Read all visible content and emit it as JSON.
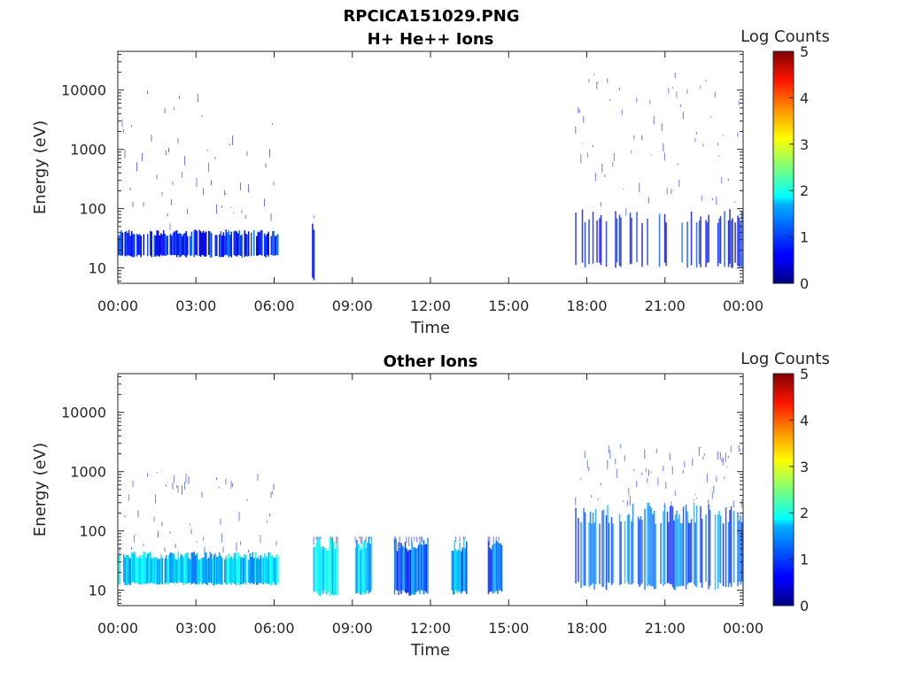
{
  "figure_title": "RPCICA151029.PNG",
  "chart_data": [
    {
      "type": "heatmap",
      "title": "H+ He++ Ions",
      "xlabel": "Time",
      "ylabel": "Energy (eV)",
      "x_tick_labels": [
        "00:00",
        "03:00",
        "06:00",
        "09:00",
        "12:00",
        "15:00",
        "18:00",
        "21:00",
        "00:00"
      ],
      "x_range_hours": [
        0,
        24
      ],
      "y_scale": "log",
      "y_range": [
        5.5,
        45000
      ],
      "y_tick_labels": [
        "10",
        "100",
        "1000",
        "10000"
      ],
      "y_tick_values": [
        10,
        100,
        1000,
        10000
      ],
      "colorbar": {
        "label": "Log Counts",
        "range": [
          0,
          5
        ],
        "tick_labels": [
          "0",
          "1",
          "2",
          "3",
          "4",
          "5"
        ],
        "colormap": "jet"
      },
      "grid": false,
      "regions": [
        {
          "t_start": 0.0,
          "t_end": 6.15,
          "e_min": 15,
          "e_max": 45,
          "log_counts": 0.8,
          "density": 0.85,
          "sparse_top": 10000
        },
        {
          "t_start": 7.45,
          "t_end": 7.55,
          "e_min": 6,
          "e_max": 75,
          "log_counts": 1.0,
          "density": 1.0,
          "sparse_top": 80
        },
        {
          "t_start": 17.5,
          "t_end": 24.0,
          "e_min": 10,
          "e_max": 100,
          "log_counts": 0.7,
          "density": 0.35,
          "sparse_top": 20000
        }
      ]
    },
    {
      "type": "heatmap",
      "title": "Other Ions",
      "xlabel": "Time",
      "ylabel": "Energy (eV)",
      "x_tick_labels": [
        "00:00",
        "03:00",
        "06:00",
        "09:00",
        "12:00",
        "15:00",
        "18:00",
        "21:00",
        "00:00"
      ],
      "x_range_hours": [
        0,
        24
      ],
      "y_scale": "log",
      "y_range": [
        5.5,
        45000
      ],
      "y_tick_labels": [
        "10",
        "100",
        "1000",
        "10000"
      ],
      "y_tick_values": [
        10,
        100,
        1000,
        10000
      ],
      "colorbar": {
        "label": "Log Counts",
        "range": [
          0,
          5
        ],
        "tick_labels": [
          "0",
          "1",
          "2",
          "3",
          "4",
          "5"
        ],
        "colormap": "jet"
      },
      "grid": false,
      "regions": [
        {
          "t_start": 0.0,
          "t_end": 6.15,
          "e_min": 12,
          "e_max": 45,
          "log_counts": 1.6,
          "density": 0.95,
          "sparse_top": 1000
        },
        {
          "t_start": 7.5,
          "t_end": 8.45,
          "e_min": 8,
          "e_max": 80,
          "log_counts": 1.8,
          "density": 1.0,
          "sparse_top": 80
        },
        {
          "t_start": 9.1,
          "t_end": 9.75,
          "e_min": 8,
          "e_max": 80,
          "log_counts": 1.5,
          "density": 1.0,
          "sparse_top": 80
        },
        {
          "t_start": 10.6,
          "t_end": 11.9,
          "e_min": 8,
          "e_max": 80,
          "log_counts": 1.1,
          "density": 1.0,
          "sparse_top": 80
        },
        {
          "t_start": 12.8,
          "t_end": 13.4,
          "e_min": 8,
          "e_max": 80,
          "log_counts": 1.4,
          "density": 1.0,
          "sparse_top": 80
        },
        {
          "t_start": 14.2,
          "t_end": 14.75,
          "e_min": 8,
          "e_max": 80,
          "log_counts": 1.2,
          "density": 1.0,
          "sparse_top": 80
        },
        {
          "t_start": 17.5,
          "t_end": 24.0,
          "e_min": 10,
          "e_max": 300,
          "log_counts": 1.1,
          "density": 0.6,
          "sparse_top": 3000
        }
      ]
    }
  ]
}
